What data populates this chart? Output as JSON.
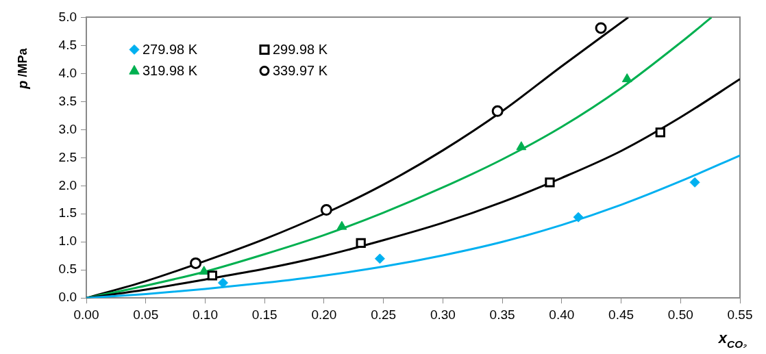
{
  "chart_data": {
    "type": "scatter",
    "xlabel": "x$_{CO₂}$",
    "ylabel": "p /MPa",
    "xlim": [
      0,
      0.55
    ],
    "ylim": [
      0,
      5
    ],
    "xticks": [
      {
        "value": 0,
        "label": "0.00"
      },
      {
        "value": 0.05,
        "label": "0.05"
      },
      {
        "value": 0.1,
        "label": "0.10"
      },
      {
        "value": 0.15,
        "label": "0.15"
      },
      {
        "value": 0.2,
        "label": "0.20"
      },
      {
        "value": 0.25,
        "label": "0.25"
      },
      {
        "value": 0.3,
        "label": "0.30"
      },
      {
        "value": 0.35,
        "label": "0.35"
      },
      {
        "value": 0.4,
        "label": "0.40"
      },
      {
        "value": 0.45,
        "label": "0.45"
      },
      {
        "value": 0.5,
        "label": "0.50"
      },
      {
        "value": 0.55,
        "label": "0.55"
      }
    ],
    "yticks": [
      {
        "value": 0,
        "label": "0.0"
      },
      {
        "value": 0.5,
        "label": "0.5"
      },
      {
        "value": 1,
        "label": "1.0"
      },
      {
        "value": 1.5,
        "label": "1.5"
      },
      {
        "value": 2,
        "label": "2.0"
      },
      {
        "value": 2.5,
        "label": "2.5"
      },
      {
        "value": 3,
        "label": "3.0"
      },
      {
        "value": 3.5,
        "label": "3.5"
      },
      {
        "value": 4,
        "label": "4.0"
      },
      {
        "value": 4.5,
        "label": "4.5"
      },
      {
        "value": 5,
        "label": "5.0"
      }
    ],
    "grid": false,
    "legend": "top left",
    "series": [
      {
        "type": "line",
        "color": "#00b0f0",
        "marker": "none",
        "x": [
          0,
          0.05,
          0.1,
          0.15,
          0.2,
          0.25,
          0.3,
          0.35,
          0.4,
          0.45,
          0.5,
          0.55
        ],
        "values": [
          0,
          0.07,
          0.16,
          0.27,
          0.4,
          0.56,
          0.76,
          1.0,
          1.3,
          1.66,
          2.08,
          2.54
        ]
      },
      {
        "type": "line",
        "color": "#000000",
        "marker": "none",
        "x": [
          0,
          0.05,
          0.1,
          0.15,
          0.2,
          0.25,
          0.3,
          0.35,
          0.4,
          0.45,
          0.5,
          0.55
        ],
        "values": [
          0,
          0.15,
          0.33,
          0.52,
          0.75,
          1.03,
          1.34,
          1.71,
          2.14,
          2.62,
          3.22,
          3.9
        ]
      },
      {
        "type": "line",
        "color": "#00b050",
        "marker": "none",
        "x": [
          0,
          0.05,
          0.1,
          0.15,
          0.2,
          0.25,
          0.3,
          0.35,
          0.4,
          0.45,
          0.5,
          0.526
        ],
        "values": [
          0,
          0.22,
          0.47,
          0.78,
          1.12,
          1.52,
          1.97,
          2.47,
          3.05,
          3.74,
          4.55,
          5.0
        ]
      },
      {
        "type": "line",
        "color": "#000000",
        "marker": "none",
        "x": [
          0,
          0.05,
          0.1,
          0.15,
          0.2,
          0.25,
          0.3,
          0.35,
          0.4,
          0.456
        ],
        "values": [
          0,
          0.3,
          0.66,
          1.05,
          1.5,
          2.02,
          2.63,
          3.33,
          4.13,
          5.0
        ]
      },
      {
        "name": "279.98 K",
        "color": "#00b0f0",
        "marker": "diamond",
        "x": [
          0.115,
          0.247,
          0.414,
          0.512
        ],
        "values": [
          0.27,
          0.7,
          1.44,
          2.06
        ]
      },
      {
        "name": "299.98 K",
        "color": "#000000",
        "marker": "square",
        "x": [
          0.106,
          0.231,
          0.39,
          0.483
        ],
        "values": [
          0.4,
          0.98,
          2.06,
          2.95
        ]
      },
      {
        "name": "319.98 K",
        "color": "#00b050",
        "marker": "triangle",
        "x": [
          0.099,
          0.215,
          0.366,
          0.455
        ],
        "values": [
          0.47,
          1.27,
          2.69,
          3.9
        ]
      },
      {
        "name": "339.97 K",
        "color": "#000000",
        "marker": "circle",
        "x": [
          0.092,
          0.202,
          0.346,
          0.433
        ],
        "values": [
          0.62,
          1.57,
          3.33,
          4.81
        ]
      }
    ]
  }
}
